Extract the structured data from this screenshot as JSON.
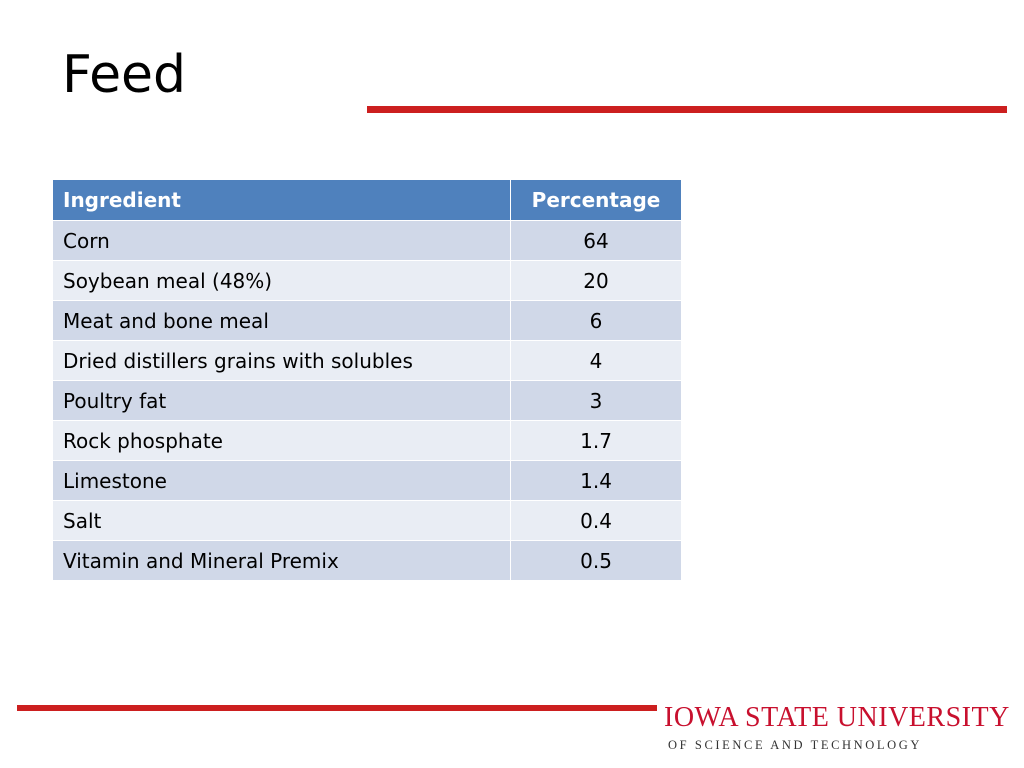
{
  "slide": {
    "title": "Feed"
  },
  "table": {
    "headers": {
      "ingredient": "Ingredient",
      "percentage": "Percentage"
    },
    "rows": [
      {
        "ingredient": "Corn",
        "percentage": "64"
      },
      {
        "ingredient": "Soybean meal (48%)",
        "percentage": "20"
      },
      {
        "ingredient": "Meat and bone meal",
        "percentage": "6"
      },
      {
        "ingredient": "Dried distillers grains with solubles",
        "percentage": "4"
      },
      {
        "ingredient": "Poultry fat",
        "percentage": "3"
      },
      {
        "ingredient": "Rock phosphate",
        "percentage": "1.7"
      },
      {
        "ingredient": "Limestone",
        "percentage": "1.4"
      },
      {
        "ingredient": "Salt",
        "percentage": "0.4"
      },
      {
        "ingredient": "Vitamin and Mineral Premix",
        "percentage": "0.5"
      }
    ]
  },
  "footer": {
    "university_name": "IOWA STATE UNIVERSITY",
    "university_subtitle": "OF SCIENCE AND TECHNOLOGY"
  },
  "colors": {
    "accent_red": "#cc1f1f",
    "header_blue": "#4f81bd",
    "row_dark": "#d0d8e8",
    "row_light": "#e9edf4",
    "brand_red": "#c8102e"
  }
}
